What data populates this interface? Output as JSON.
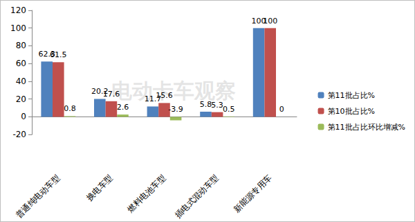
{
  "chart_data": {
    "type": "bar",
    "categories": [
      "普通纯电动车型",
      "换电车型",
      "燃料电池车型",
      "插电式混动车型",
      "新能源专用车"
    ],
    "series": [
      {
        "name": "第11批占比%",
        "color": "#4f81bd",
        "values": [
          62.3,
          20.2,
          11.7,
          5.8,
          100
        ]
      },
      {
        "name": "第10批占比%",
        "color": "#c0504d",
        "values": [
          61.5,
          17.6,
          15.6,
          5.3,
          100
        ]
      },
      {
        "name": "第11批占比环比增减%",
        "color": "#9bbb59",
        "values": [
          0.8,
          2.6,
          -3.9,
          0.5,
          0
        ]
      }
    ],
    "ylim": [
      -20,
      120
    ],
    "yticks": [
      -20,
      0,
      20,
      40,
      60,
      80,
      100,
      120
    ],
    "grid": false,
    "legend": "right",
    "data_labels": true,
    "annotations": [
      "电动卡车观察"
    ]
  }
}
